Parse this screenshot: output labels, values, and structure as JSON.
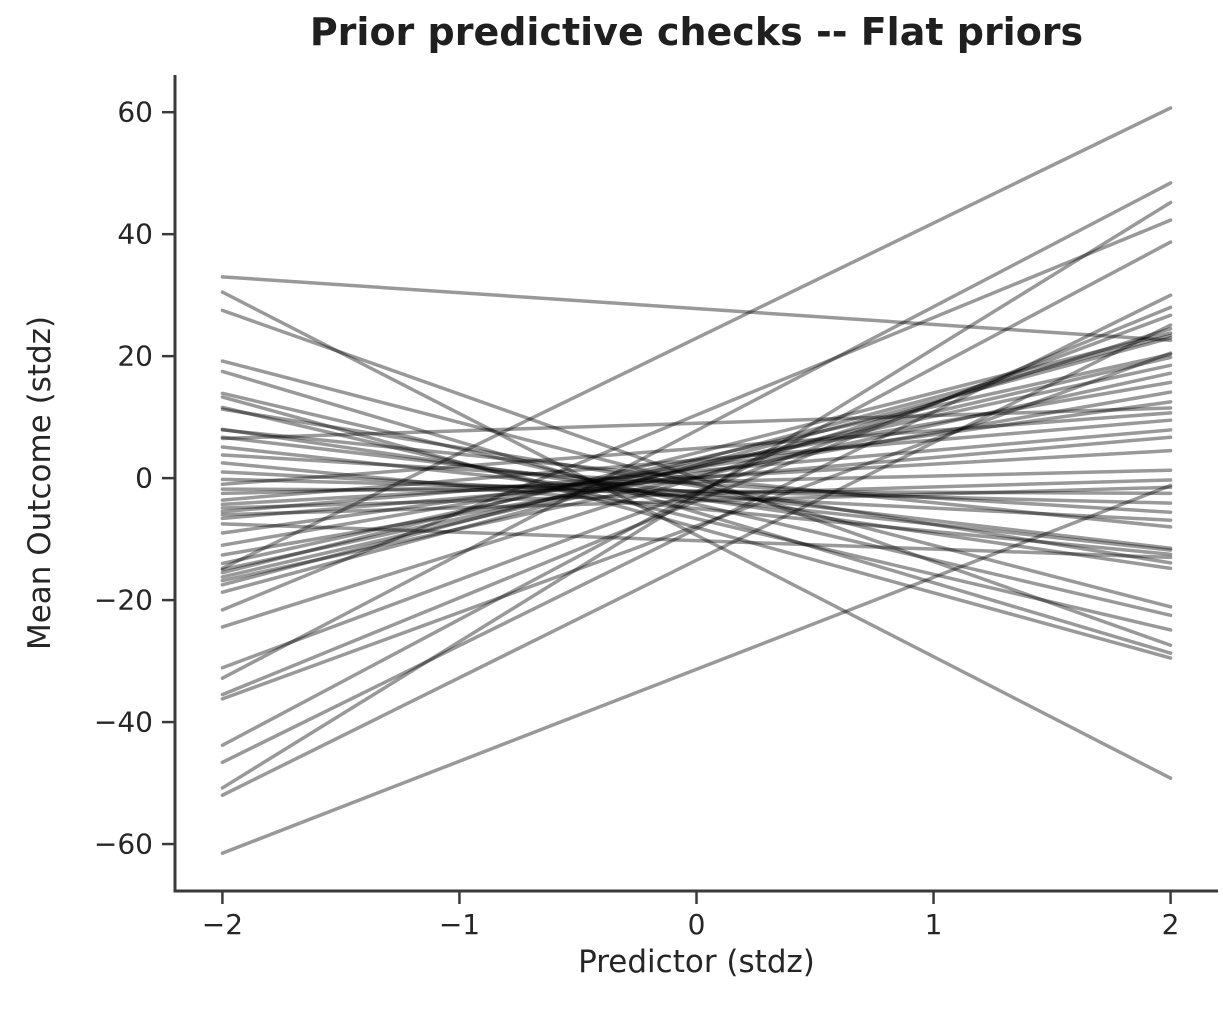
{
  "colors": {
    "background": "#ffffff",
    "text": "#262626",
    "title_text": "#1f1f1f",
    "spine": "#3a3a3a",
    "prior_line": "#000000"
  },
  "chart_data": {
    "type": "line",
    "title": "Prior predictive checks -- Flat priors",
    "xlabel": "Predictor (stdz)",
    "ylabel": "Mean Outcome (stdz)",
    "xlim": [
      -2.2,
      2.2
    ],
    "ylim": [
      -67.7,
      66.1
    ],
    "grid": false,
    "legend": null,
    "x_ticks": [
      {
        "value": -2,
        "label": "−2"
      },
      {
        "value": -1,
        "label": "−1"
      },
      {
        "value": 0,
        "label": "0"
      },
      {
        "value": 1,
        "label": "1"
      },
      {
        "value": 2,
        "label": "2"
      }
    ],
    "y_ticks": [
      {
        "value": 60,
        "label": "60"
      },
      {
        "value": 40,
        "label": "40"
      },
      {
        "value": 20,
        "label": "20"
      },
      {
        "value": 0,
        "label": "0"
      },
      {
        "value": -20,
        "label": "−20"
      },
      {
        "value": -40,
        "label": "−40"
      },
      {
        "value": -60,
        "label": "−60"
      }
    ],
    "series_x_range": [
      -2,
      2
    ],
    "n_lines": 50,
    "line_opacity": 0.4,
    "line_width": 3.5,
    "lines_y_at_xminus2_and_x2": [
      [
        33.0,
        22.6
      ],
      [
        30.5,
        -49.2
      ],
      [
        27.5,
        -27.4
      ],
      [
        19.2,
        -21.1
      ],
      [
        17.5,
        -28.7
      ],
      [
        13.9,
        -22.5
      ],
      [
        13.3,
        -29.5
      ],
      [
        11.6,
        -24.9
      ],
      [
        11.3,
        -13.9
      ],
      [
        8.0,
        -14.8
      ],
      [
        7.9,
        -8.0
      ],
      [
        6.7,
        -11.5
      ],
      [
        6.5,
        11.5
      ],
      [
        5.1,
        -11.8
      ],
      [
        3.8,
        -5.6
      ],
      [
        2.5,
        -12.5
      ],
      [
        1.0,
        -6.9
      ],
      [
        -0.2,
        -4.1
      ],
      [
        -1.0,
        10.7
      ],
      [
        -1.8,
        -2.5
      ],
      [
        -2.5,
        1.3
      ],
      [
        -3.6,
        9.5
      ],
      [
        -4.3,
        4.5
      ],
      [
        -4.9,
        -0.3
      ],
      [
        -5.5,
        7.9
      ],
      [
        -6.0,
        -1.5
      ],
      [
        -6.6,
        6.7
      ],
      [
        -7.5,
        -13.0
      ],
      [
        -9.0,
        12.5
      ],
      [
        -11.0,
        15.7
      ],
      [
        -12.6,
        14.1
      ],
      [
        -14.0,
        20.3
      ],
      [
        -14.8,
        60.7
      ],
      [
        -15.0,
        18.5
      ],
      [
        -15.5,
        23.8
      ],
      [
        -16.2,
        19.8
      ],
      [
        -16.8,
        17.2
      ],
      [
        -17.5,
        23.4
      ],
      [
        -18.7,
        23.0
      ],
      [
        -21.6,
        42.3
      ],
      [
        -24.4,
        24.5
      ],
      [
        -31.1,
        26.7
      ],
      [
        -32.8,
        48.4
      ],
      [
        -35.5,
        28.0
      ],
      [
        -36.2,
        20.5
      ],
      [
        -43.8,
        38.7
      ],
      [
        -46.6,
        30.0
      ],
      [
        -50.8,
        45.2
      ],
      [
        -52.0,
        25.1
      ],
      [
        -61.5,
        -1.2
      ]
    ]
  }
}
